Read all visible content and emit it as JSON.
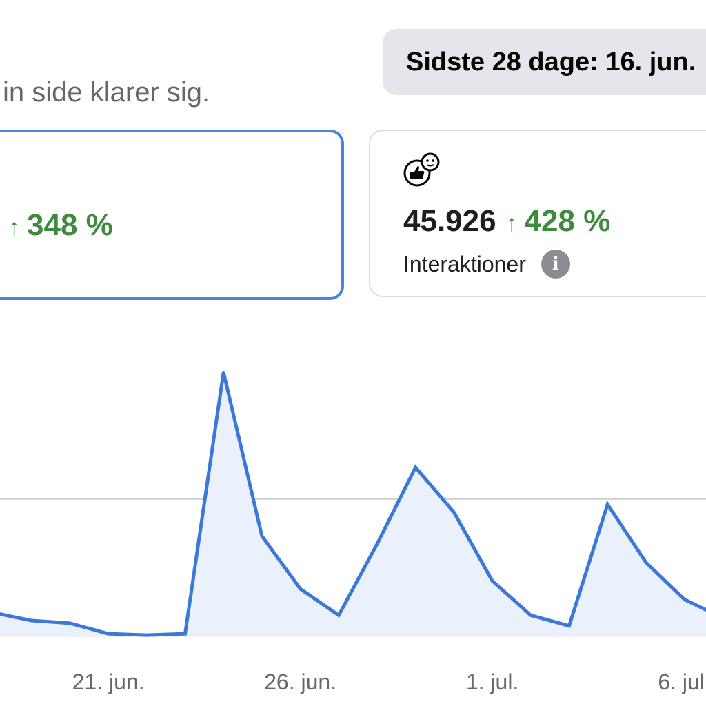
{
  "header": {
    "subtitle": "in side klarer sig.",
    "date_range_label": "Sidste 28 dage: 16. jun."
  },
  "cards": [
    {
      "value": "",
      "delta": "348 %",
      "delta_direction": "up",
      "selected": true
    },
    {
      "icon": "thumbs-up-smiley-icon",
      "value": "45.926",
      "delta": "428 %",
      "delta_direction": "up",
      "label": "Interaktioner",
      "info_icon": "info-icon",
      "selected": false
    }
  ],
  "colors": {
    "accent": "#4a84e0",
    "positive": "#3f8b3d",
    "line": "#3b78d8",
    "area_fill": "#eaf1fc"
  },
  "chart_data": {
    "type": "area",
    "x_tick_labels": [
      "21. jun.",
      "26. jun.",
      "1. jul.",
      "6. jul."
    ],
    "points": [
      {
        "x": "18. jun.",
        "y": 0.09
      },
      {
        "x": "19. jun.",
        "y": 0.06
      },
      {
        "x": "20. jun.",
        "y": 0.05
      },
      {
        "x": "21. jun.",
        "y": 0.01
      },
      {
        "x": "22. jun.",
        "y": 0.005
      },
      {
        "x": "23. jun.",
        "y": 0.01
      },
      {
        "x": "24. jun.",
        "y": 1.0
      },
      {
        "x": "25. jun.",
        "y": 0.38
      },
      {
        "x": "26. jun.",
        "y": 0.18
      },
      {
        "x": "27. jun.",
        "y": 0.08
      },
      {
        "x": "28. jun.",
        "y": 0.35
      },
      {
        "x": "29. jun.",
        "y": 0.64
      },
      {
        "x": "30. jun.",
        "y": 0.47
      },
      {
        "x": "1. jul.",
        "y": 0.21
      },
      {
        "x": "2. jul.",
        "y": 0.08
      },
      {
        "x": "3. jul.",
        "y": 0.04
      },
      {
        "x": "4. jul.",
        "y": 0.5
      },
      {
        "x": "5. jul.",
        "y": 0.28
      },
      {
        "x": "6. jul.",
        "y": 0.14
      },
      {
        "x": "7. jul.",
        "y": 0.07
      }
    ],
    "gridline_at": 0.52,
    "grid": true
  }
}
